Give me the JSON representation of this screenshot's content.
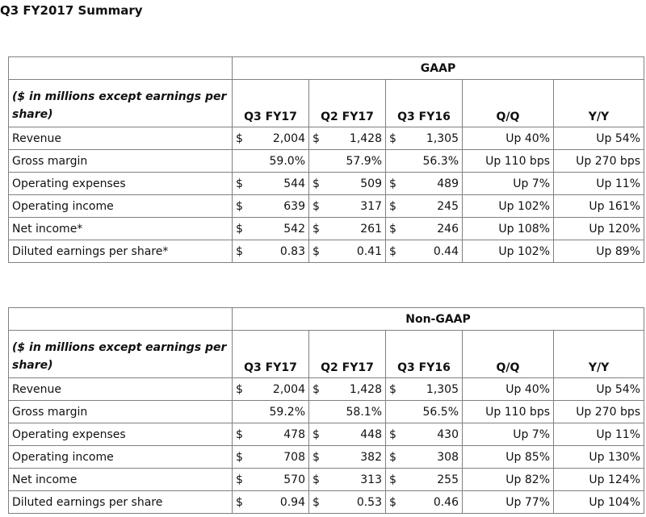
{
  "title": "Q3 FY2017 Summary",
  "columns": [
    "Q3 FY17",
    "Q2 FY17",
    "Q3 FY16",
    "Q/Q",
    "Y/Y"
  ],
  "lead_text": "($ in millions except earnings per share)",
  "gaap": {
    "heading": "GAAP",
    "rows": [
      {
        "label": "Revenue",
        "cur": [
          "$",
          "$",
          "$"
        ],
        "vals": [
          "2,004",
          "1,428",
          "1,305"
        ],
        "qq": "Up 40%",
        "yy": "Up 54%"
      },
      {
        "label": "Gross margin",
        "cur": [
          "",
          "",
          ""
        ],
        "vals": [
          "59.0%",
          "57.9%",
          "56.3%"
        ],
        "qq": "Up 110 bps",
        "yy": "Up 270 bps"
      },
      {
        "label": "Operating expenses",
        "cur": [
          "$",
          "$",
          "$"
        ],
        "vals": [
          "544",
          "509",
          "489"
        ],
        "qq": "Up 7%",
        "yy": "Up 11%"
      },
      {
        "label": "Operating income",
        "cur": [
          "$",
          "$",
          "$"
        ],
        "vals": [
          "639",
          "317",
          "245"
        ],
        "qq": "Up 102%",
        "yy": "Up 161%"
      },
      {
        "label": "Net income*",
        "cur": [
          "$",
          "$",
          "$"
        ],
        "vals": [
          "542",
          "261",
          "246"
        ],
        "qq": "Up 108%",
        "yy": "Up 120%"
      },
      {
        "label": "Diluted earnings per share*",
        "cur": [
          "$",
          "$",
          "$"
        ],
        "vals": [
          "0.83",
          "0.41",
          "0.44"
        ],
        "qq": "Up 102%",
        "yy": "Up 89%"
      }
    ]
  },
  "nongaap": {
    "heading": "Non-GAAP",
    "rows": [
      {
        "label": "Revenue",
        "cur": [
          "$",
          "$",
          "$"
        ],
        "vals": [
          "2,004",
          "1,428",
          "1,305"
        ],
        "qq": "Up 40%",
        "yy": "Up 54%"
      },
      {
        "label": "Gross margin",
        "cur": [
          "",
          "",
          ""
        ],
        "vals": [
          "59.2%",
          "58.1%",
          "56.5%"
        ],
        "qq": "Up 110 bps",
        "yy": "Up 270 bps"
      },
      {
        "label": "Operating expenses",
        "cur": [
          "$",
          "$",
          "$"
        ],
        "vals": [
          "478",
          "448",
          "430"
        ],
        "qq": "Up 7%",
        "yy": "Up 11%"
      },
      {
        "label": "Operating income",
        "cur": [
          "$",
          "$",
          "$"
        ],
        "vals": [
          "708",
          "382",
          "308"
        ],
        "qq": "Up 85%",
        "yy": "Up 130%"
      },
      {
        "label": "Net income",
        "cur": [
          "$",
          "$",
          "$"
        ],
        "vals": [
          "570",
          "313",
          "255"
        ],
        "qq": "Up 82%",
        "yy": "Up 124%"
      },
      {
        "label": "Diluted earnings per share",
        "cur": [
          "$",
          "$",
          "$"
        ],
        "vals": [
          "0.94",
          "0.53",
          "0.46"
        ],
        "qq": "Up 77%",
        "yy": "Up 104%"
      }
    ]
  }
}
